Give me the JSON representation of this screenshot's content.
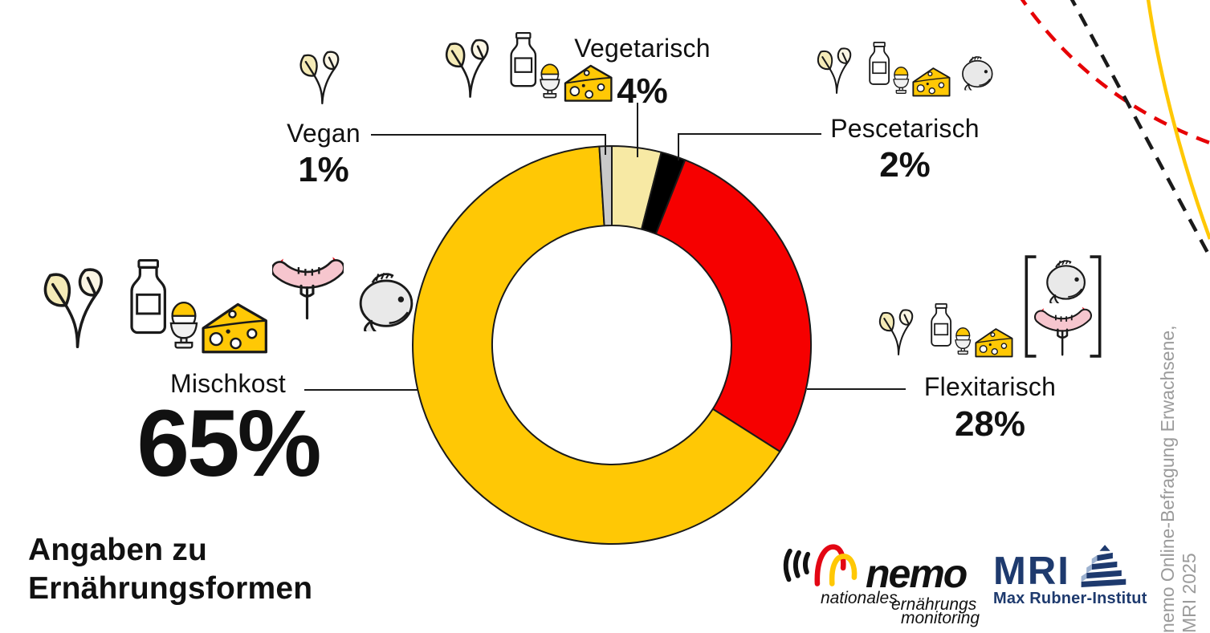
{
  "title": {
    "line1": "Angaben zu",
    "line2": "Ernährungsformen"
  },
  "chart_data": {
    "type": "pie",
    "subtype": "donut",
    "title": "Angaben zu Ernährungsformen",
    "unit": "%",
    "order": "clockwise-from-top",
    "inner_radius_ratio": 0.6,
    "outline_color": "#1a1a1a",
    "segments": [
      {
        "label": "Vegetarisch",
        "value": 4,
        "color": "#F7E9A4"
      },
      {
        "label": "Pescetarisch",
        "value": 2,
        "color": "#000000"
      },
      {
        "label": "Flexitarisch",
        "value": 28,
        "color": "#F60000"
      },
      {
        "label": "Mischkost",
        "value": 65,
        "color": "#FFC805"
      },
      {
        "label": "Vegan",
        "value": 1,
        "color": "#C9C9C9"
      }
    ]
  },
  "labels": {
    "vegan": {
      "name": "Vegan",
      "pct": "1%",
      "icons": [
        "sprout"
      ]
    },
    "vegetarisch": {
      "name": "Vegetarisch",
      "pct": "4%",
      "icons": [
        "sprout",
        "milk",
        "egg",
        "cheese"
      ]
    },
    "pescetarisch": {
      "name": "Pescetarisch",
      "pct": "2%",
      "icons": [
        "sprout",
        "milk",
        "egg",
        "cheese",
        "fish"
      ]
    },
    "flexitarisch": {
      "name": "Flexitarisch",
      "pct": "28%",
      "icons": [
        "sprout",
        "milk",
        "egg",
        "cheese",
        "bracket-fish-sausage"
      ]
    },
    "mischkost": {
      "name": "Mischkost",
      "pct": "65%",
      "icons": [
        "sprout",
        "milk",
        "egg",
        "cheese",
        "sausage-fork",
        "fish"
      ]
    }
  },
  "decorations": {
    "red_dashed_curve_color": "#E60005",
    "black_dashed_curve_color": "#1a1a1a",
    "gold_curve_color": "#FFC805"
  },
  "logos": {
    "nemo": {
      "wordmark": "nemo",
      "tagline1": "nationales",
      "tagline2": "ernährungs",
      "tagline3": "monitoring",
      "black": "#111111",
      "red": "#E30613",
      "gold": "#FFC805"
    },
    "mri": {
      "wordmark": "MRI",
      "subtitle": "Max Rubner-Institut",
      "navy": "#1E3A6E",
      "lightblue": "#9DB2D0"
    }
  },
  "source_note": {
    "line1": "nemo Online-Befragung Erwachsene,",
    "line2": "MRI 2025",
    "color": "#9B9B9B"
  }
}
